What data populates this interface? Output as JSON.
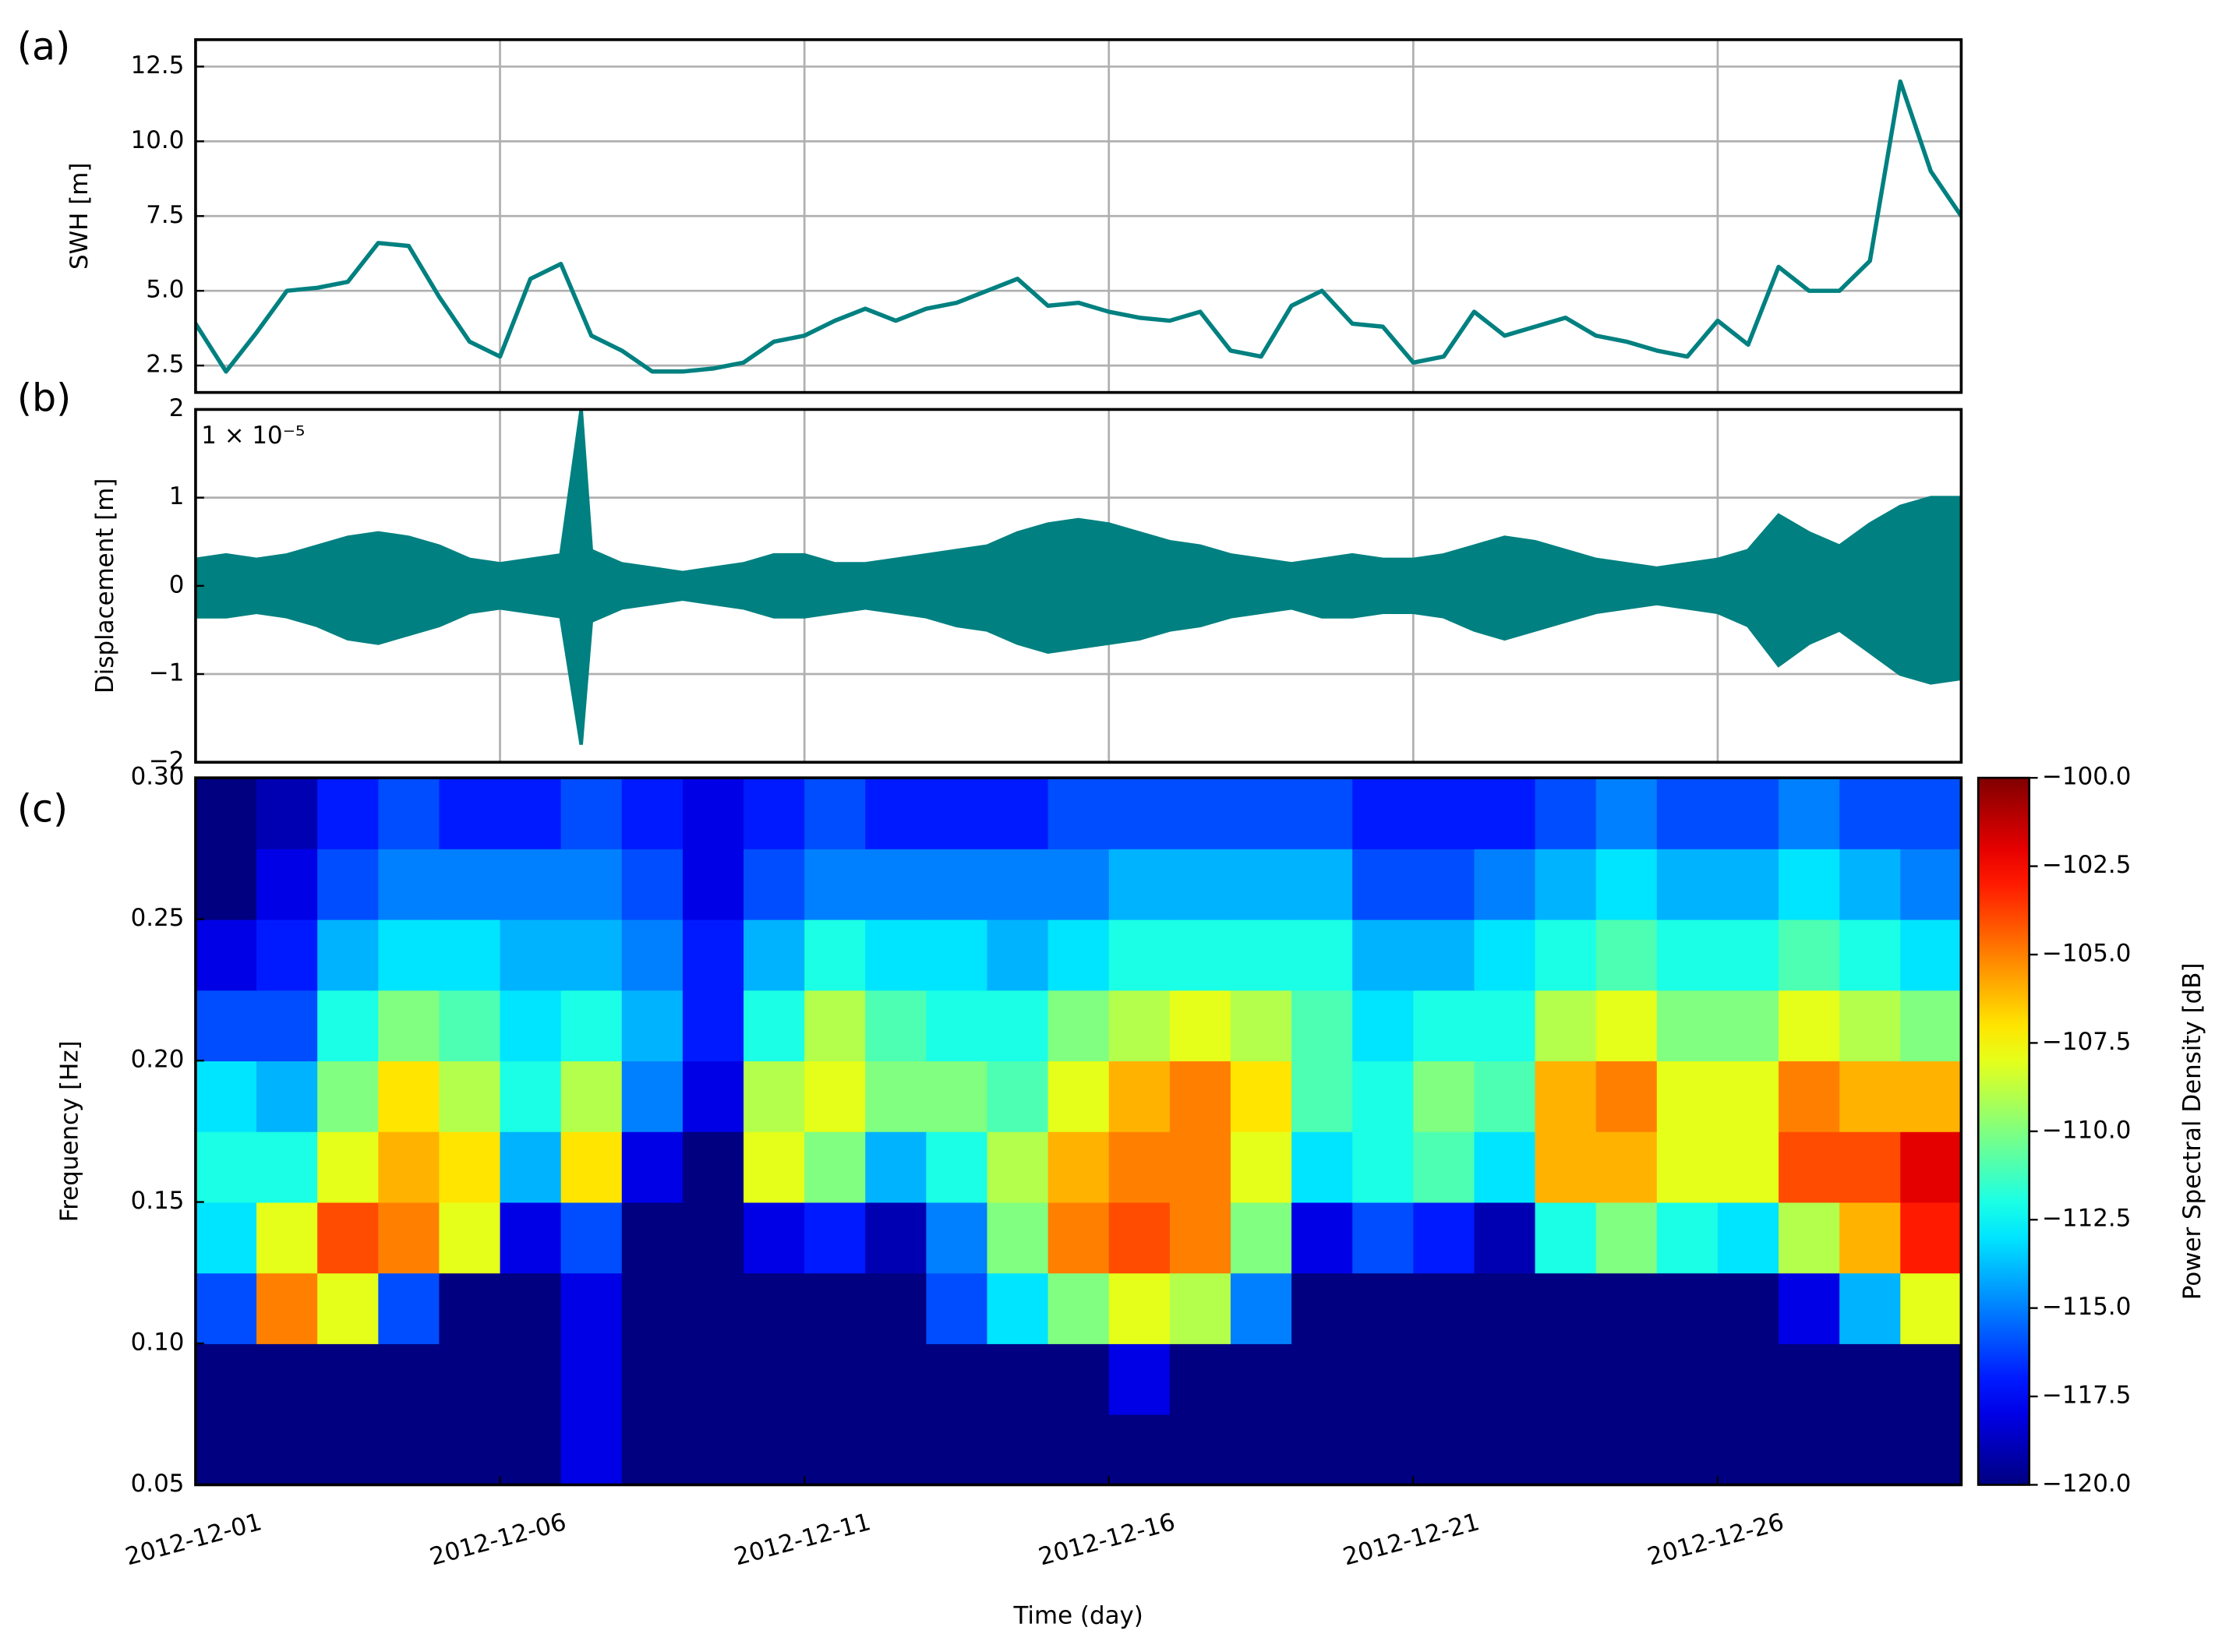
{
  "chart_data": [
    {
      "type": "line",
      "panel_label": "(a)",
      "y_label": "SWH [m]",
      "x": [
        "2012-12-01 00:00",
        "2012-12-01 12:00",
        "2012-12-02 00:00",
        "2012-12-02 12:00",
        "2012-12-03 00:00",
        "2012-12-03 12:00",
        "2012-12-04 00:00",
        "2012-12-04 12:00",
        "2012-12-05 00:00",
        "2012-12-05 12:00",
        "2012-12-06 00:00",
        "2012-12-06 12:00",
        "2012-12-07 00:00",
        "2012-12-07 12:00",
        "2012-12-08 00:00",
        "2012-12-08 12:00",
        "2012-12-09 00:00",
        "2012-12-09 12:00",
        "2012-12-10 00:00",
        "2012-12-10 12:00",
        "2012-12-11 00:00",
        "2012-12-11 12:00",
        "2012-12-12 00:00",
        "2012-12-12 12:00",
        "2012-12-13 00:00",
        "2012-12-13 12:00",
        "2012-12-14 00:00",
        "2012-12-14 12:00",
        "2012-12-15 00:00",
        "2012-12-15 12:00",
        "2012-12-16 00:00",
        "2012-12-16 12:00",
        "2012-12-17 00:00",
        "2012-12-17 12:00",
        "2012-12-18 00:00",
        "2012-12-18 12:00",
        "2012-12-19 00:00",
        "2012-12-19 12:00",
        "2012-12-20 00:00",
        "2012-12-20 12:00",
        "2012-12-21 00:00",
        "2012-12-21 12:00",
        "2012-12-22 00:00",
        "2012-12-22 12:00",
        "2012-12-23 00:00",
        "2012-12-23 12:00",
        "2012-12-24 00:00",
        "2012-12-24 12:00",
        "2012-12-25 00:00",
        "2012-12-25 12:00",
        "2012-12-26 00:00",
        "2012-12-26 12:00",
        "2012-12-27 00:00",
        "2012-12-27 12:00",
        "2012-12-28 00:00",
        "2012-12-28 12:00",
        "2012-12-29 00:00",
        "2012-12-29 12:00",
        "2012-12-30 00:00"
      ],
      "series": [
        {
          "color": "#008080",
          "values": [
            3.9,
            2.3,
            3.6,
            5.0,
            5.1,
            5.3,
            6.6,
            6.5,
            4.8,
            3.3,
            2.8,
            5.4,
            5.9,
            3.5,
            3.0,
            2.3,
            2.3,
            2.4,
            2.6,
            3.3,
            3.5,
            4.0,
            4.4,
            4.0,
            4.4,
            4.6,
            5.0,
            5.4,
            4.5,
            4.6,
            4.3,
            4.1,
            4.0,
            4.3,
            3.0,
            2.8,
            4.5,
            5.0,
            3.9,
            3.8,
            2.6,
            2.8,
            4.3,
            3.5,
            3.8,
            4.1,
            3.5,
            3.3,
            3.0,
            2.8,
            4.0,
            3.2,
            5.8,
            5.0,
            5.0,
            6.0,
            12.0,
            9.0,
            7.5
          ]
        }
      ],
      "xlim": [
        "2012-12-01",
        "2012-12-30"
      ],
      "ylim": [
        1.6,
        13.4
      ],
      "yticks": [
        2.5,
        {
          "value": 5,
          "label": "5.0"
        },
        7.5,
        {
          "value": 10,
          "label": "10.0"
        },
        12.5
      ],
      "grid": true
    },
    {
      "type": "band",
      "panel_label": "(b)",
      "y_label": "Displacement [m]",
      "scale_label": "1 × 10⁻⁵",
      "x": [
        "2012-12-01 00:00",
        "2012-12-01 12:00",
        "2012-12-02 00:00",
        "2012-12-02 12:00",
        "2012-12-03 00:00",
        "2012-12-03 12:00",
        "2012-12-04 00:00",
        "2012-12-04 12:00",
        "2012-12-05 00:00",
        "2012-12-05 12:00",
        "2012-12-06 00:00",
        "2012-12-06 12:00",
        "2012-12-07 00:00",
        "2012-12-07 08:00",
        "2012-12-07 12:00",
        "2012-12-08 00:00",
        "2012-12-08 12:00",
        "2012-12-09 00:00",
        "2012-12-09 12:00",
        "2012-12-10 00:00",
        "2012-12-10 12:00",
        "2012-12-11 00:00",
        "2012-12-11 12:00",
        "2012-12-12 00:00",
        "2012-12-12 12:00",
        "2012-12-13 00:00",
        "2012-12-13 12:00",
        "2012-12-14 00:00",
        "2012-12-14 12:00",
        "2012-12-15 00:00",
        "2012-12-15 12:00",
        "2012-12-16 00:00",
        "2012-12-16 12:00",
        "2012-12-17 00:00",
        "2012-12-17 12:00",
        "2012-12-18 00:00",
        "2012-12-18 12:00",
        "2012-12-19 00:00",
        "2012-12-19 12:00",
        "2012-12-20 00:00",
        "2012-12-20 12:00",
        "2012-12-21 00:00",
        "2012-12-21 12:00",
        "2012-12-22 00:00",
        "2012-12-22 12:00",
        "2012-12-23 00:00",
        "2012-12-23 12:00",
        "2012-12-24 00:00",
        "2012-12-24 12:00",
        "2012-12-25 00:00",
        "2012-12-25 12:00",
        "2012-12-26 00:00",
        "2012-12-26 12:00",
        "2012-12-27 00:00",
        "2012-12-27 12:00",
        "2012-12-28 00:00",
        "2012-12-28 12:00",
        "2012-12-29 00:00",
        "2012-12-29 12:00",
        "2012-12-30 00:00"
      ],
      "series": [
        {
          "color": "#008080",
          "values": [
            0.3,
            0.35,
            0.3,
            0.35,
            0.45,
            0.55,
            0.6,
            0.55,
            0.45,
            0.3,
            0.25,
            0.3,
            0.35,
            2.0,
            0.4,
            0.25,
            0.2,
            0.15,
            0.2,
            0.25,
            0.35,
            0.35,
            0.25,
            0.25,
            0.3,
            0.35,
            0.4,
            0.45,
            0.6,
            0.7,
            0.75,
            0.7,
            0.6,
            0.5,
            0.45,
            0.35,
            0.3,
            0.25,
            0.3,
            0.35,
            0.3,
            0.3,
            0.35,
            0.45,
            0.55,
            0.5,
            0.4,
            0.3,
            0.25,
            0.2,
            0.25,
            0.3,
            0.4,
            0.8,
            0.6,
            0.45,
            0.7,
            0.9,
            1.0,
            1.0
          ]
        },
        {
          "color": "#008080",
          "values": [
            -0.35,
            -0.35,
            -0.3,
            -0.35,
            -0.45,
            -0.6,
            -0.65,
            -0.55,
            -0.45,
            -0.3,
            -0.25,
            -0.3,
            -0.35,
            -1.8,
            -0.4,
            -0.25,
            -0.2,
            -0.15,
            -0.2,
            -0.25,
            -0.35,
            -0.35,
            -0.3,
            -0.25,
            -0.3,
            -0.35,
            -0.45,
            -0.5,
            -0.65,
            -0.75,
            -0.7,
            -0.65,
            -0.6,
            -0.5,
            -0.45,
            -0.35,
            -0.3,
            -0.25,
            -0.35,
            -0.35,
            -0.3,
            -0.3,
            -0.35,
            -0.5,
            -0.6,
            -0.5,
            -0.4,
            -0.3,
            -0.25,
            -0.2,
            -0.25,
            -0.3,
            -0.45,
            -0.9,
            -0.65,
            -0.5,
            -0.75,
            -1.0,
            -1.1,
            -1.05
          ]
        }
      ],
      "xlim": [
        "2012-12-01",
        "2012-12-30"
      ],
      "ylim": [
        -2,
        2
      ],
      "yticks": [
        {
          "value": -2,
          "label": "−2"
        },
        {
          "value": -1,
          "label": "−1"
        },
        0,
        1,
        2
      ],
      "grid": true
    },
    {
      "type": "heatmap",
      "panel_label": "(c)",
      "x_label": "Time (day)",
      "y_label": "Frequency [Hz]",
      "colorbar_label": "Power Spectral Density [dB]",
      "colormap": "jet",
      "x": [
        "2012-12-01 12:00",
        "2012-12-02 12:00",
        "2012-12-03 12:00",
        "2012-12-04 12:00",
        "2012-12-05 12:00",
        "2012-12-06 12:00",
        "2012-12-07 12:00",
        "2012-12-08 12:00",
        "2012-12-09 12:00",
        "2012-12-10 12:00",
        "2012-12-11 12:00",
        "2012-12-12 12:00",
        "2012-12-13 12:00",
        "2012-12-14 12:00",
        "2012-12-15 12:00",
        "2012-12-16 12:00",
        "2012-12-17 12:00",
        "2012-12-18 12:00",
        "2012-12-19 12:00",
        "2012-12-20 12:00",
        "2012-12-21 12:00",
        "2012-12-22 12:00",
        "2012-12-23 12:00",
        "2012-12-24 12:00",
        "2012-12-25 12:00",
        "2012-12-26 12:00",
        "2012-12-27 12:00",
        "2012-12-28 12:00",
        "2012-12-29 12:00"
      ],
      "y": [
        0.0625,
        0.0875,
        0.1125,
        0.1375,
        0.1625,
        0.1875,
        0.2125,
        0.2375,
        0.2625,
        0.2875
      ],
      "values": [
        [
          -120,
          -120,
          -120,
          -120,
          -120,
          -120,
          -118,
          -120,
          -120,
          -120,
          -120,
          -120,
          -120,
          -120,
          -120,
          -120,
          -120,
          -120,
          -120,
          -120,
          -120,
          -120,
          -120,
          -120,
          -120,
          -120,
          -120,
          -120,
          -120
        ],
        [
          -120,
          -120,
          -120,
          -120,
          -120,
          -120,
          -118,
          -120,
          -120,
          -120,
          -120,
          -120,
          -120,
          -120,
          -120,
          -118,
          -120,
          -120,
          -120,
          -120,
          -120,
          -120,
          -120,
          -120,
          -120,
          -120,
          -120,
          -120,
          -120
        ],
        [
          -116,
          -105,
          -108,
          -116,
          -120,
          -120,
          -118,
          -120,
          -120,
          -120,
          -120,
          -120,
          -116,
          -113,
          -110,
          -108,
          -109,
          -115,
          -120,
          -120,
          -120,
          -120,
          -120,
          -120,
          -120,
          -120,
          -118,
          -114,
          -108
        ],
        [
          -113,
          -108,
          -104,
          -105,
          -108,
          -118,
          -116,
          -120,
          -120,
          -118,
          -117,
          -119,
          -115,
          -110,
          -105,
          -104,
          -105,
          -110,
          -118,
          -116,
          -117,
          -119,
          -112,
          -110,
          -112,
          -113,
          -109,
          -106,
          -103
        ],
        [
          -112,
          -112,
          -108,
          -106,
          -107,
          -114,
          -107,
          -118,
          -120,
          -108,
          -110,
          -114,
          -112,
          -109,
          -106,
          -105,
          -105,
          -108,
          -113,
          -112,
          -111,
          -113,
          -106,
          -106,
          -108,
          -108,
          -104,
          -104,
          -102
        ],
        [
          -113,
          -114,
          -110,
          -107,
          -109,
          -112,
          -109,
          -115,
          -118,
          -109,
          -108,
          -110,
          -110,
          -111,
          -108,
          -106,
          -105,
          -107,
          -111,
          -112,
          -110,
          -111,
          -106,
          -105,
          -108,
          -108,
          -105,
          -106,
          -106
        ],
        [
          -116,
          -116,
          -112,
          -110,
          -111,
          -113,
          -112,
          -114,
          -117,
          -112,
          -109,
          -111,
          -112,
          -112,
          -110,
          -109,
          -108,
          -109,
          -111,
          -113,
          -112,
          -112,
          -109,
          -108,
          -110,
          -110,
          -108,
          -109,
          -110
        ],
        [
          -118,
          -117,
          -114,
          -113,
          -113,
          -114,
          -114,
          -115,
          -117,
          -114,
          -112,
          -113,
          -113,
          -114,
          -113,
          -112,
          -112,
          -112,
          -112,
          -114,
          -114,
          -113,
          -112,
          -111,
          -112,
          -112,
          -111,
          -112,
          -113
        ],
        [
          -120,
          -118,
          -116,
          -115,
          -115,
          -115,
          -115,
          -116,
          -118,
          -116,
          -115,
          -115,
          -115,
          -115,
          -115,
          -114,
          -114,
          -114,
          -114,
          -116,
          -116,
          -115,
          -114,
          -113,
          -114,
          -114,
          -113,
          -114,
          -115
        ],
        [
          -120,
          -119,
          -117,
          -116,
          -117,
          -117,
          -116,
          -117,
          -118,
          -117,
          -116,
          -117,
          -117,
          -117,
          -116,
          -116,
          -116,
          -116,
          -116,
          -117,
          -117,
          -117,
          -116,
          -115,
          -116,
          -116,
          -115,
          -116,
          -116
        ]
      ],
      "xlim": [
        "2012-12-01",
        "2012-12-30"
      ],
      "xticks": [
        "2012-12-01",
        "2012-12-06",
        "2012-12-11",
        "2012-12-16",
        "2012-12-21",
        "2012-12-26"
      ],
      "ylim": [
        0.05,
        0.3
      ],
      "yticks": [
        0.05,
        {
          "value": 0.1,
          "label": "0.10"
        },
        0.15,
        {
          "value": 0.2,
          "label": "0.20"
        },
        0.25,
        {
          "value": 0.3,
          "label": "0.30"
        }
      ],
      "clim": [
        -120,
        -100
      ],
      "cticks": [
        {
          "value": -120,
          "label": "−120.0"
        },
        {
          "value": -117.5,
          "label": "−117.5"
        },
        {
          "value": -115,
          "label": "−115.0"
        },
        {
          "value": -112.5,
          "label": "−112.5"
        },
        {
          "value": -110,
          "label": "−110.0"
        },
        {
          "value": -107.5,
          "label": "−107.5"
        },
        {
          "value": -105,
          "label": "−105.0"
        },
        {
          "value": -102.5,
          "label": "−102.5"
        },
        {
          "value": -100,
          "label": "−100.0"
        }
      ]
    }
  ]
}
